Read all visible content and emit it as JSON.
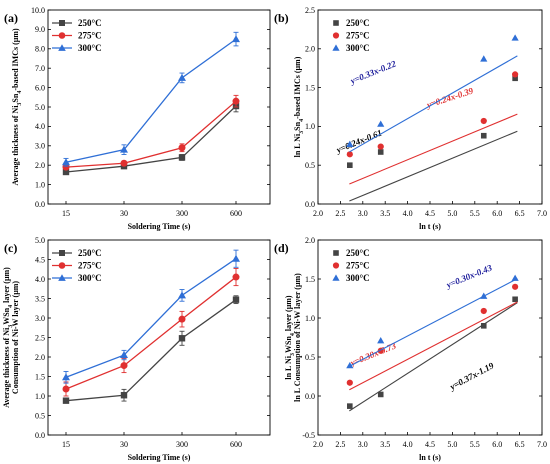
{
  "colors": {
    "s250": "#444444",
    "s275": "#e03030",
    "s300": "#2f6fd6",
    "eq300_b": "#1a1a9a",
    "eq300_d": "#1a1a9a"
  },
  "chart_data": [
    {
      "panel": "(a)",
      "type": "line",
      "xlabel": "Soldering Time (s)",
      "ylabel": "Average thickness of Ni₃Sn₄-based IMCs (μm)",
      "categories": [
        "15",
        "30",
        "300",
        "600"
      ],
      "ylim": [
        0,
        10
      ],
      "yticks": [
        "0.0",
        "1.0",
        "2.0",
        "3.0",
        "4.0",
        "5.0",
        "6.0",
        "7.0",
        "8.0",
        "9.0",
        "10.0"
      ],
      "legend_position": "top-left",
      "series": [
        {
          "name": "250°C",
          "marker": "square",
          "values": [
            1.65,
            1.95,
            2.4,
            5.05
          ],
          "errors": [
            0.1,
            0.1,
            0.15,
            0.3
          ]
        },
        {
          "name": "275°C",
          "marker": "circle",
          "values": [
            1.9,
            2.1,
            2.9,
            5.3
          ],
          "errors": [
            0.1,
            0.1,
            0.2,
            0.3
          ]
        },
        {
          "name": "300°C",
          "marker": "triangle",
          "values": [
            2.15,
            2.8,
            6.5,
            8.5
          ],
          "errors": [
            0.2,
            0.25,
            0.25,
            0.35
          ]
        }
      ]
    },
    {
      "panel": "(b)",
      "type": "scatter",
      "xlabel": "ln t (s)",
      "ylabel": "ln L Ni₃Sn₄-based IMCs (μm)",
      "xlim": [
        2.0,
        7.0
      ],
      "ylim": [
        0.0,
        2.5
      ],
      "xticks": [
        "2.0",
        "2.5",
        "3.0",
        "3.5",
        "4.0",
        "4.5",
        "5.0",
        "5.5",
        "6.0",
        "6.5",
        "7.0"
      ],
      "yticks": [
        "0.0",
        "0.5",
        "1.0",
        "1.5",
        "2.0",
        "2.5"
      ],
      "legend_position": "top-left",
      "series": [
        {
          "name": "250°C",
          "marker": "square",
          "x": [
            2.71,
            3.4,
            5.7,
            6.4
          ],
          "y": [
            0.5,
            0.67,
            0.88,
            1.62
          ],
          "fit": "y=0.24x-0.61"
        },
        {
          "name": "275°C",
          "marker": "circle",
          "x": [
            2.71,
            3.4,
            5.7,
            6.4
          ],
          "y": [
            0.64,
            0.74,
            1.07,
            1.67
          ],
          "fit": "y=0.24x-0.39"
        },
        {
          "name": "300°C",
          "marker": "triangle",
          "x": [
            2.71,
            3.4,
            5.7,
            6.4
          ],
          "y": [
            0.77,
            1.03,
            1.87,
            2.14
          ],
          "fit": "y=0.33x-0.22"
        }
      ]
    },
    {
      "panel": "(c)",
      "type": "line",
      "xlabel": "Soldering Time (s)",
      "ylabel": "Average thickness of Ni₃WSn₄ layer (μm)\nConsumption of Ni-W layer (μm)",
      "categories": [
        "15",
        "30",
        "300",
        "600"
      ],
      "ylim": [
        0,
        5
      ],
      "yticks": [
        "0.0",
        "0.5",
        "1.0",
        "1.5",
        "2.0",
        "2.5",
        "3.0",
        "3.5",
        "4.0",
        "4.5",
        "5.0"
      ],
      "legend_position": "top-left",
      "series": [
        {
          "name": "250°C",
          "marker": "square",
          "values": [
            0.88,
            1.02,
            2.48,
            3.47
          ],
          "errors": [
            0.05,
            0.15,
            0.18,
            0.1
          ]
        },
        {
          "name": "275°C",
          "marker": "circle",
          "values": [
            1.18,
            1.78,
            2.97,
            4.05
          ],
          "errors": [
            0.18,
            0.18,
            0.2,
            0.22
          ]
        },
        {
          "name": "300°C",
          "marker": "triangle",
          "values": [
            1.48,
            2.05,
            3.58,
            4.52
          ],
          "errors": [
            0.15,
            0.12,
            0.15,
            0.22
          ]
        }
      ]
    },
    {
      "panel": "(d)",
      "type": "scatter",
      "xlabel": "ln t (s)",
      "ylabel": "ln L Ni₃WSn₄ layer (μm)\nln L Consumption of Ni-W layer (μm)",
      "xlim": [
        2.0,
        7.0
      ],
      "ylim": [
        -0.5,
        2.0
      ],
      "xticks": [
        "2.0",
        "2.5",
        "3.0",
        "3.5",
        "4.0",
        "4.5",
        "5.0",
        "5.5",
        "6.0",
        "6.5",
        "7.0"
      ],
      "yticks": [
        "-0.5",
        "0.0",
        "0.5",
        "1.0",
        "1.5",
        "2.0"
      ],
      "legend_position": "top-left",
      "series": [
        {
          "name": "250°C",
          "marker": "square",
          "x": [
            2.71,
            3.4,
            5.7,
            6.4
          ],
          "y": [
            -0.13,
            0.02,
            0.9,
            1.24
          ],
          "fit": "y=0.37x-1.19"
        },
        {
          "name": "275°C",
          "marker": "circle",
          "x": [
            2.71,
            3.4,
            5.7,
            6.4
          ],
          "y": [
            0.17,
            0.58,
            1.09,
            1.4
          ],
          "fit": "y=0.30x-0.73"
        },
        {
          "name": "300°C",
          "marker": "triangle",
          "x": [
            2.71,
            3.4,
            5.7,
            6.4
          ],
          "y": [
            0.39,
            0.71,
            1.28,
            1.51
          ],
          "fit": "y=0.30x-0.43"
        }
      ]
    }
  ]
}
